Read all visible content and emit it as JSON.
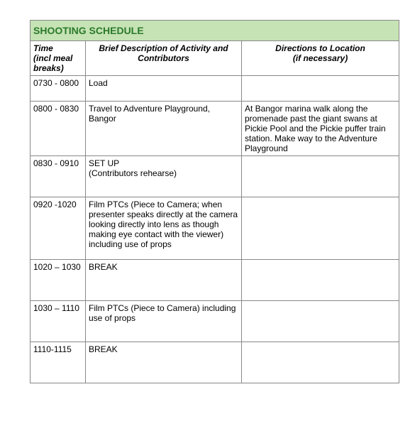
{
  "title": "SHOOTING SCHEDULE",
  "headers": {
    "time": "Time\n(incl meal breaks)",
    "desc": "Brief Description of Activity and Contributors",
    "dir": "Directions to Location\n(if necessary)"
  },
  "colors": {
    "title_bg": "#c6e3b5",
    "title_text": "#2a7a2a",
    "border": "#888888",
    "background": "#ffffff"
  },
  "rows": [
    {
      "time": "0730 - 0800",
      "desc": "Load",
      "dir": "",
      "h": "short"
    },
    {
      "time": "0800 - 0830",
      "desc": "Travel to Adventure Playground, Bangor",
      "dir": "At Bangor marina walk along the promenade past the giant swans at Pickie Pool and the Pickie puffer train station. Make way to the Adventure Playground",
      "h": ""
    },
    {
      "time": "0830 - 0910",
      "desc": "SET UP\n(Contributors rehearse)",
      "dir": "",
      "h": ""
    },
    {
      "time": "0920 -1020",
      "desc": "Film PTCs (Piece to Camera; when presenter speaks directly at the camera looking directly into lens as though making eye contact with the viewer) including use of props",
      "dir": "",
      "h": "tall"
    },
    {
      "time": "1020 – 1030",
      "desc": "BREAK",
      "dir": "",
      "h": ""
    },
    {
      "time": "1030 – 1110",
      "desc": "Film PTCs (Piece to Camera) including use of props",
      "dir": "",
      "h": ""
    },
    {
      "time": "1110-1115",
      "desc": "BREAK",
      "dir": "",
      "h": ""
    }
  ]
}
